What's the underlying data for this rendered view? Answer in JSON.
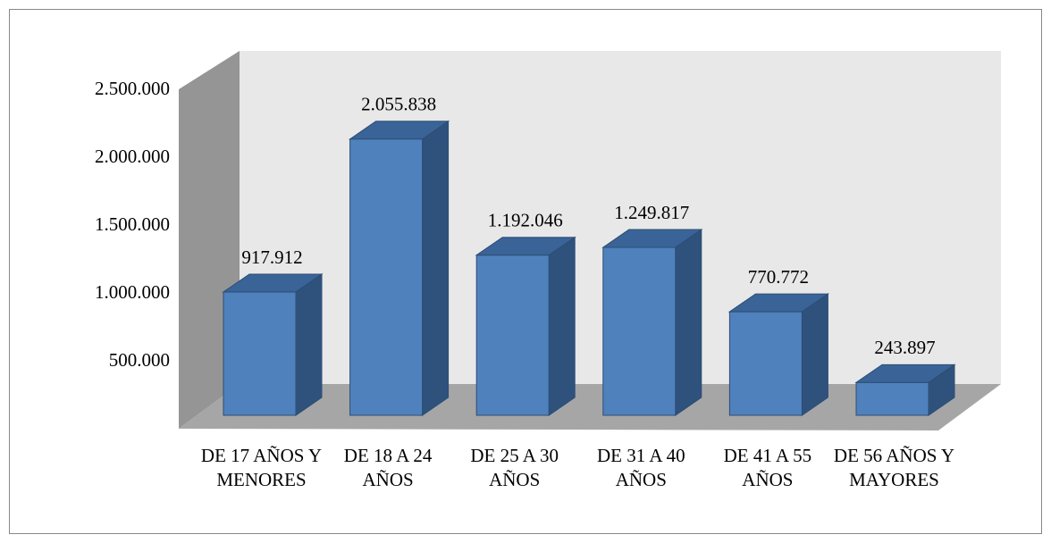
{
  "chart_data": {
    "type": "bar3d",
    "categories": [
      "DE 17 AÑOS Y MENORES",
      "DE 18 A 24 AÑOS",
      "DE 25 A 30 AÑOS",
      "DE 31 A 40 AÑOS",
      "DE 41 A 55 AÑOS",
      "DE 56 AÑOS Y MAYORES"
    ],
    "values": [
      917912,
      2055838,
      1192046,
      1249817,
      770772,
      243897
    ],
    "value_labels": [
      "917.912",
      "2.055.838",
      "1.192.046",
      "1.249.817",
      "770.772",
      "243.897"
    ],
    "color": "#4f81bd",
    "ylim": [
      0,
      2500000
    ],
    "yticks": [
      {
        "value": 500000,
        "label": "500.000"
      },
      {
        "value": 1000000,
        "label": "1.000.000"
      },
      {
        "value": 1500000,
        "label": "1.500.000"
      },
      {
        "value": 2000000,
        "label": "2.000.000"
      },
      {
        "value": 2500000,
        "label": "2.500.000"
      }
    ]
  }
}
